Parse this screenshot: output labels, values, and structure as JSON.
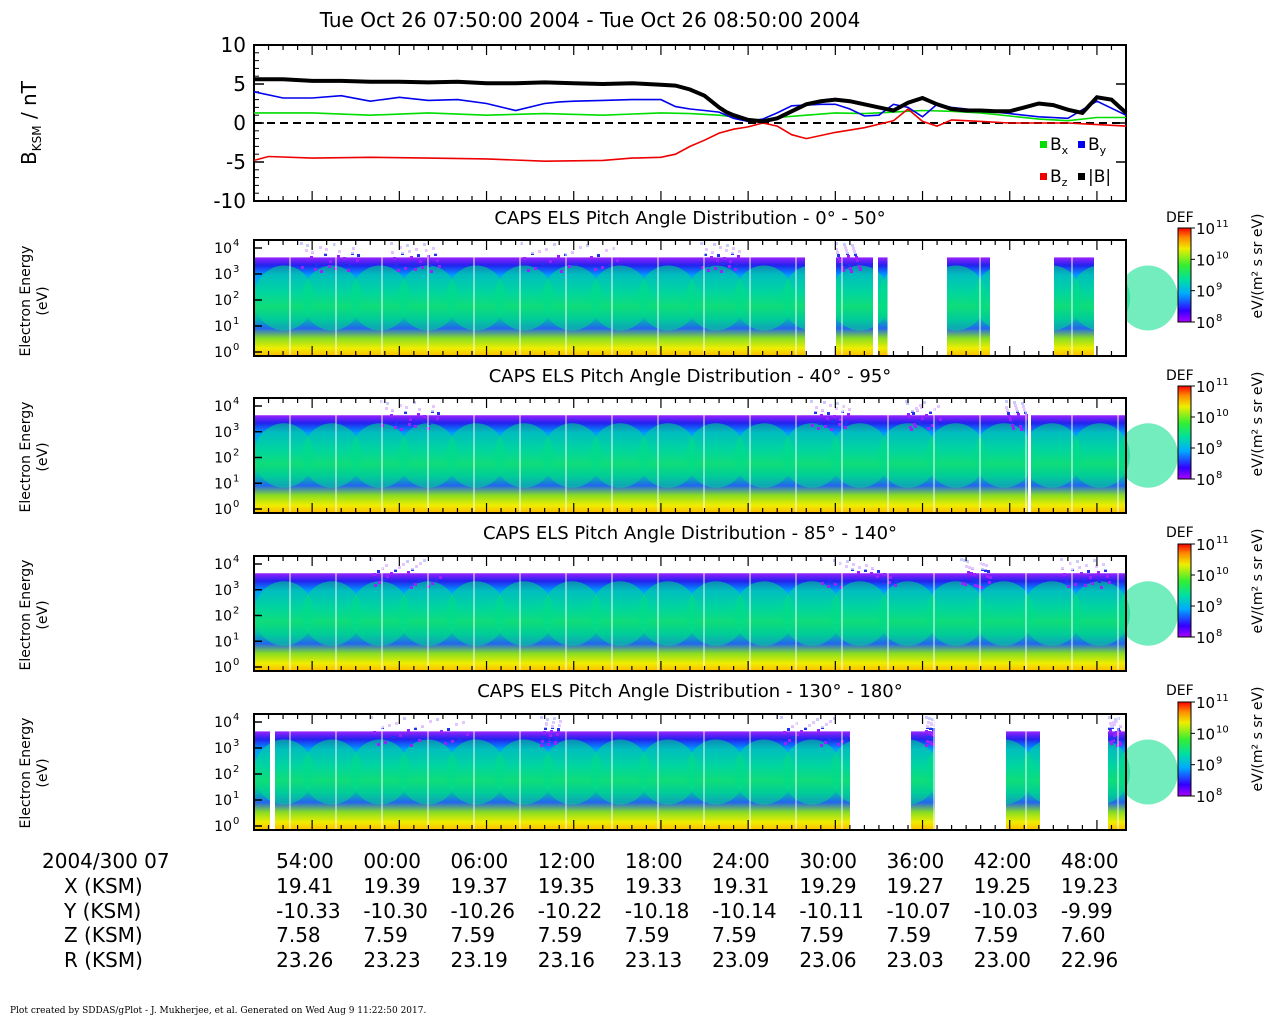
{
  "title": "Tue Oct 26 07:50:00 2004 - Tue Oct 26 08:50:00 2004",
  "footer": "Plot created by SDDAS/gPlot - J. Mukherjee, et al.  Generated on Wed Aug 9 11:22:50 2017.",
  "colors": {
    "bx": "#00dd00",
    "by": "#0000ee",
    "bz": "#ee0000",
    "bmag": "#000000"
  },
  "chart_data": [
    {
      "type": "line",
      "ylabel_main": "B",
      "ylabel_sub": "KSM",
      "ylabel_unit": " / nT",
      "ylim": [
        -10,
        10
      ],
      "yticks": [
        "10",
        "5",
        "0",
        "-5",
        "-10"
      ],
      "ytick_values": [
        10,
        5,
        0,
        -5,
        -10
      ],
      "xlim_minutes": [
        50,
        110
      ],
      "legend": [
        {
          "key": "bx",
          "label": "B",
          "sub": "x"
        },
        {
          "key": "by",
          "label": "B",
          "sub": "y"
        },
        {
          "key": "bz",
          "label": "B",
          "sub": "z"
        },
        {
          "key": "bmag",
          "label": "|B|",
          "sub": ""
        }
      ],
      "series": [
        {
          "key": "bmag",
          "x": [
            50,
            52,
            54,
            56,
            58,
            60,
            62,
            64,
            66,
            68,
            70,
            72,
            74,
            76,
            78,
            79,
            80,
            81,
            82,
            82.5,
            83,
            84,
            85,
            86,
            87,
            88,
            89,
            90,
            91,
            92,
            93,
            94,
            95,
            96,
            97,
            98,
            99,
            100,
            101,
            102,
            103,
            104,
            105,
            106,
            107,
            108,
            109,
            110
          ],
          "y": [
            5.6,
            5.6,
            5.4,
            5.4,
            5.3,
            5.3,
            5.2,
            5.3,
            5.1,
            5.1,
            5.2,
            5.1,
            5.0,
            5.1,
            4.9,
            4.8,
            4.3,
            3.5,
            2.0,
            1.4,
            1.0,
            0.4,
            0.2,
            0.6,
            1.5,
            2.4,
            2.8,
            3.0,
            2.8,
            2.4,
            2.0,
            1.6,
            2.6,
            3.2,
            2.4,
            1.8,
            1.6,
            1.6,
            1.5,
            1.5,
            2.0,
            2.5,
            2.3,
            1.7,
            1.3,
            3.3,
            3.0,
            1.3
          ]
        },
        {
          "key": "by",
          "x": [
            50,
            52,
            54,
            56,
            58,
            60,
            62,
            64,
            66,
            68,
            70,
            71,
            72,
            74,
            76,
            78,
            79,
            80,
            81,
            82,
            83,
            84,
            85,
            86,
            87,
            88,
            89,
            90,
            91,
            92,
            93,
            94,
            95,
            96,
            97,
            98,
            100,
            102,
            104,
            106,
            108,
            110
          ],
          "y": [
            4.0,
            3.2,
            3.2,
            3.5,
            2.8,
            3.3,
            2.9,
            3.0,
            2.5,
            1.6,
            2.5,
            2.7,
            2.8,
            2.9,
            3.0,
            3.0,
            2.1,
            1.8,
            1.6,
            1.4,
            0.6,
            0.2,
            0.5,
            1.3,
            2.2,
            2.3,
            2.4,
            2.4,
            1.8,
            0.9,
            1.0,
            2.4,
            2.0,
            0.8,
            2.4,
            2.0,
            1.6,
            1.2,
            0.8,
            0.6,
            2.8,
            1.0
          ]
        },
        {
          "key": "bx",
          "x": [
            50,
            54,
            58,
            62,
            66,
            70,
            74,
            78,
            80,
            82,
            83,
            84,
            85,
            86,
            88,
            90,
            92,
            94,
            96,
            98,
            100,
            102,
            104,
            106,
            108,
            110
          ],
          "y": [
            1.3,
            1.3,
            1.0,
            1.3,
            1.0,
            1.2,
            1.0,
            1.3,
            1.2,
            1.0,
            0.8,
            0.5,
            0.4,
            0.7,
            1.0,
            1.3,
            1.2,
            1.4,
            1.6,
            1.5,
            1.3,
            0.9,
            0.5,
            0.3,
            0.7,
            0.7
          ]
        },
        {
          "key": "bz",
          "x": [
            50,
            51,
            54,
            58,
            62,
            66,
            70,
            74,
            76,
            78,
            79,
            80,
            81,
            82,
            83,
            84,
            85,
            86,
            87,
            88,
            90,
            92,
            94,
            95,
            96,
            97,
            98,
            100,
            102,
            104,
            106,
            108,
            110
          ],
          "y": [
            -4.8,
            -4.3,
            -4.5,
            -4.4,
            -4.5,
            -4.6,
            -4.9,
            -4.8,
            -4.5,
            -4.4,
            -4.0,
            -3.0,
            -2.2,
            -1.3,
            -0.8,
            -0.5,
            0.0,
            -0.4,
            -1.5,
            -2.0,
            -1.2,
            -0.6,
            0.3,
            1.8,
            0.2,
            -0.4,
            0.4,
            0.2,
            0.0,
            0.0,
            0.0,
            -0.2,
            -0.4
          ]
        }
      ]
    },
    {
      "type": "heatmap",
      "title": "CAPS ELS Pitch Angle Distribution - 0° - 50°",
      "ylabel": [
        "Electron Energy",
        "(eV)"
      ],
      "colorbar_label": "DEF",
      "colorbar_unit": "eV/(m² s sr eV)",
      "colorbar_ticks": [
        "11",
        "10",
        "9",
        "8"
      ],
      "yticks": [
        "4",
        "3",
        "2",
        "1",
        "0"
      ]
    },
    {
      "type": "heatmap",
      "title": "CAPS ELS Pitch Angle Distribution - 40° - 95°",
      "ylabel": [
        "Electron Energy",
        "(eV)"
      ],
      "colorbar_label": "DEF",
      "colorbar_unit": "eV/(m² s sr eV)",
      "colorbar_ticks": [
        "11",
        "10",
        "9",
        "8"
      ],
      "yticks": [
        "4",
        "3",
        "2",
        "1",
        "0"
      ]
    },
    {
      "type": "heatmap",
      "title": "CAPS ELS Pitch Angle Distribution - 85° - 140°",
      "ylabel": [
        "Electron Energy",
        "(eV)"
      ],
      "colorbar_label": "DEF",
      "colorbar_unit": "eV/(m² s sr eV)",
      "colorbar_ticks": [
        "11",
        "10",
        "9",
        "8"
      ],
      "yticks": [
        "4",
        "3",
        "2",
        "1",
        "0"
      ]
    },
    {
      "type": "heatmap",
      "title": "CAPS ELS Pitch Angle Distribution - 130° - 180°",
      "ylabel": [
        "Electron Energy",
        "(eV)"
      ],
      "colorbar_label": "DEF",
      "colorbar_unit": "eV/(m² s sr eV)",
      "colorbar_ticks": [
        "11",
        "10",
        "9",
        "8"
      ],
      "yticks": [
        "4",
        "3",
        "2",
        "1",
        "0"
      ]
    }
  ],
  "ephemeris": {
    "date_label": "2004/300 07",
    "rows": [
      {
        "label": "X (KSM)",
        "values": [
          "19.41",
          "19.39",
          "19.37",
          "19.35",
          "19.33",
          "19.31",
          "19.29",
          "19.27",
          "19.25",
          "19.23"
        ]
      },
      {
        "label": "Y (KSM)",
        "values": [
          "-10.33",
          "-10.30",
          "-10.26",
          "-10.22",
          "-10.18",
          "-10.14",
          "-10.11",
          "-10.07",
          "-10.03",
          "-9.99"
        ]
      },
      {
        "label": "Z (KSM)",
        "values": [
          "7.58",
          "7.59",
          "7.59",
          "7.59",
          "7.59",
          "7.59",
          "7.59",
          "7.59",
          "7.59",
          "7.60"
        ]
      },
      {
        "label": "R (KSM)",
        "values": [
          "23.26",
          "23.23",
          "23.19",
          "23.16",
          "23.13",
          "23.09",
          "23.06",
          "23.03",
          "23.00",
          "22.96"
        ]
      }
    ],
    "time_labels": [
      "54:00",
      "00:00",
      "06:00",
      "12:00",
      "18:00",
      "24:00",
      "30:00",
      "36:00",
      "42:00",
      "48:00"
    ],
    "time_minutes": [
      54,
      60,
      66,
      72,
      78,
      84,
      90,
      96,
      102,
      108
    ]
  }
}
